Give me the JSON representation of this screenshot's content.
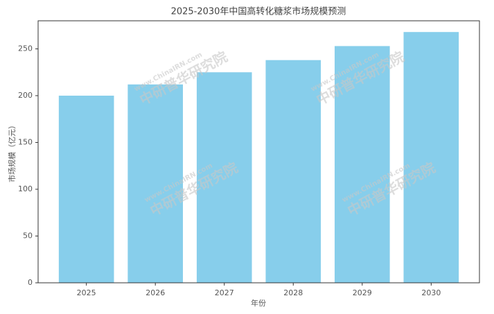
{
  "chart_data": {
    "type": "bar",
    "title": "2025-2030年中国高转化糖浆市场规模预测",
    "x_label": "年份",
    "y_label": "市场规模（亿元）",
    "categories": [
      "2025",
      "2026",
      "2027",
      "2028",
      "2029",
      "2030"
    ],
    "values": [
      200,
      212,
      225,
      238,
      253,
      268
    ],
    "color": "#87ceeb",
    "ylim": [
      0,
      280
    ],
    "yticks": [
      0,
      50,
      100,
      150,
      200,
      250
    ],
    "grid": false,
    "watermark": [
      "www.ChinaIRN.com",
      "中研普华研究院"
    ]
  }
}
